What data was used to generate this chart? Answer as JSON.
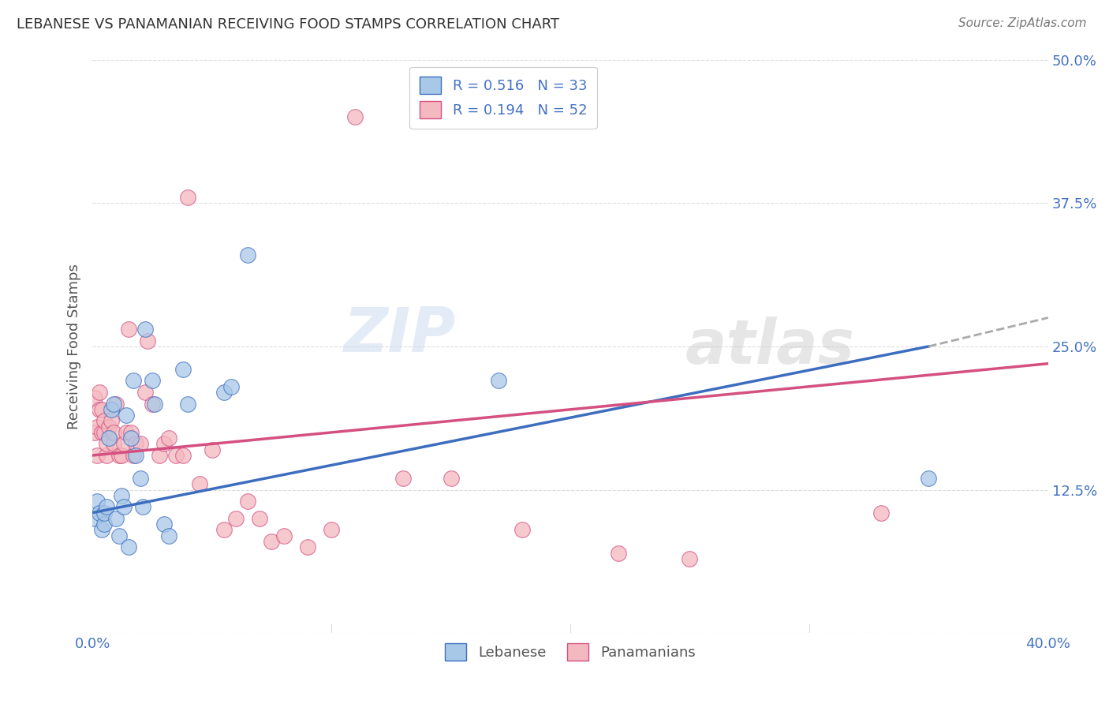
{
  "title": "LEBANESE VS PANAMANIAN RECEIVING FOOD STAMPS CORRELATION CHART",
  "source": "Source: ZipAtlas.com",
  "ylabel": "Receiving Food Stamps",
  "xlim": [
    0.0,
    0.4
  ],
  "ylim": [
    0.0,
    0.5
  ],
  "yticks": [
    0.0,
    0.125,
    0.25,
    0.375,
    0.5
  ],
  "ytick_labels": [
    "",
    "12.5%",
    "25.0%",
    "37.5%",
    "50.0%"
  ],
  "xticks": [
    0.0,
    0.1,
    0.2,
    0.3,
    0.4
  ],
  "xtick_labels": [
    "0.0%",
    "",
    "",
    "",
    "40.0%"
  ],
  "color_lebanese": "#a8c8e8",
  "color_panamanian": "#f4b8c0",
  "color_lebanese_line": "#3d6dbf",
  "color_panamanian_line": "#d45080",
  "color_trendline_ext": "#aaaaaa",
  "watermark_zip": "ZIP",
  "watermark_atlas": "atlas",
  "background_color": "#ffffff",
  "grid_color": "#dddddd",
  "title_color": "#333333",
  "axis_label_color": "#555555",
  "lebanese_x": [
    0.001,
    0.002,
    0.003,
    0.004,
    0.005,
    0.005,
    0.006,
    0.007,
    0.008,
    0.009,
    0.01,
    0.011,
    0.012,
    0.013,
    0.014,
    0.015,
    0.016,
    0.017,
    0.018,
    0.02,
    0.021,
    0.022,
    0.025,
    0.026,
    0.03,
    0.032,
    0.038,
    0.04,
    0.055,
    0.058,
    0.065,
    0.17,
    0.35
  ],
  "lebanese_y": [
    0.1,
    0.115,
    0.105,
    0.09,
    0.095,
    0.105,
    0.11,
    0.17,
    0.195,
    0.2,
    0.1,
    0.085,
    0.12,
    0.11,
    0.19,
    0.075,
    0.17,
    0.22,
    0.155,
    0.135,
    0.11,
    0.265,
    0.22,
    0.2,
    0.095,
    0.085,
    0.23,
    0.2,
    0.21,
    0.215,
    0.33,
    0.22,
    0.135
  ],
  "panamanian_x": [
    0.001,
    0.001,
    0.002,
    0.002,
    0.003,
    0.003,
    0.004,
    0.004,
    0.005,
    0.005,
    0.006,
    0.006,
    0.007,
    0.008,
    0.009,
    0.009,
    0.01,
    0.011,
    0.012,
    0.013,
    0.014,
    0.015,
    0.016,
    0.017,
    0.018,
    0.02,
    0.022,
    0.023,
    0.025,
    0.028,
    0.03,
    0.032,
    0.035,
    0.038,
    0.04,
    0.045,
    0.05,
    0.055,
    0.06,
    0.065,
    0.07,
    0.075,
    0.08,
    0.09,
    0.1,
    0.11,
    0.13,
    0.15,
    0.18,
    0.22,
    0.25,
    0.33
  ],
  "panamanian_y": [
    0.175,
    0.205,
    0.155,
    0.18,
    0.195,
    0.21,
    0.175,
    0.195,
    0.175,
    0.185,
    0.155,
    0.165,
    0.18,
    0.185,
    0.165,
    0.175,
    0.2,
    0.155,
    0.155,
    0.165,
    0.175,
    0.265,
    0.175,
    0.155,
    0.165,
    0.165,
    0.21,
    0.255,
    0.2,
    0.155,
    0.165,
    0.17,
    0.155,
    0.155,
    0.38,
    0.13,
    0.16,
    0.09,
    0.1,
    0.115,
    0.1,
    0.08,
    0.085,
    0.075,
    0.09,
    0.45,
    0.135,
    0.135,
    0.09,
    0.07,
    0.065,
    0.105
  ],
  "leb_trendline_x0": 0.0,
  "leb_trendline_y0": 0.105,
  "leb_trendline_x1": 0.35,
  "leb_trendline_y1": 0.25,
  "leb_trendline_ext_x1": 0.4,
  "leb_trendline_ext_y1": 0.275,
  "pan_trendline_x0": 0.0,
  "pan_trendline_y0": 0.155,
  "pan_trendline_x1": 0.4,
  "pan_trendline_y1": 0.235
}
